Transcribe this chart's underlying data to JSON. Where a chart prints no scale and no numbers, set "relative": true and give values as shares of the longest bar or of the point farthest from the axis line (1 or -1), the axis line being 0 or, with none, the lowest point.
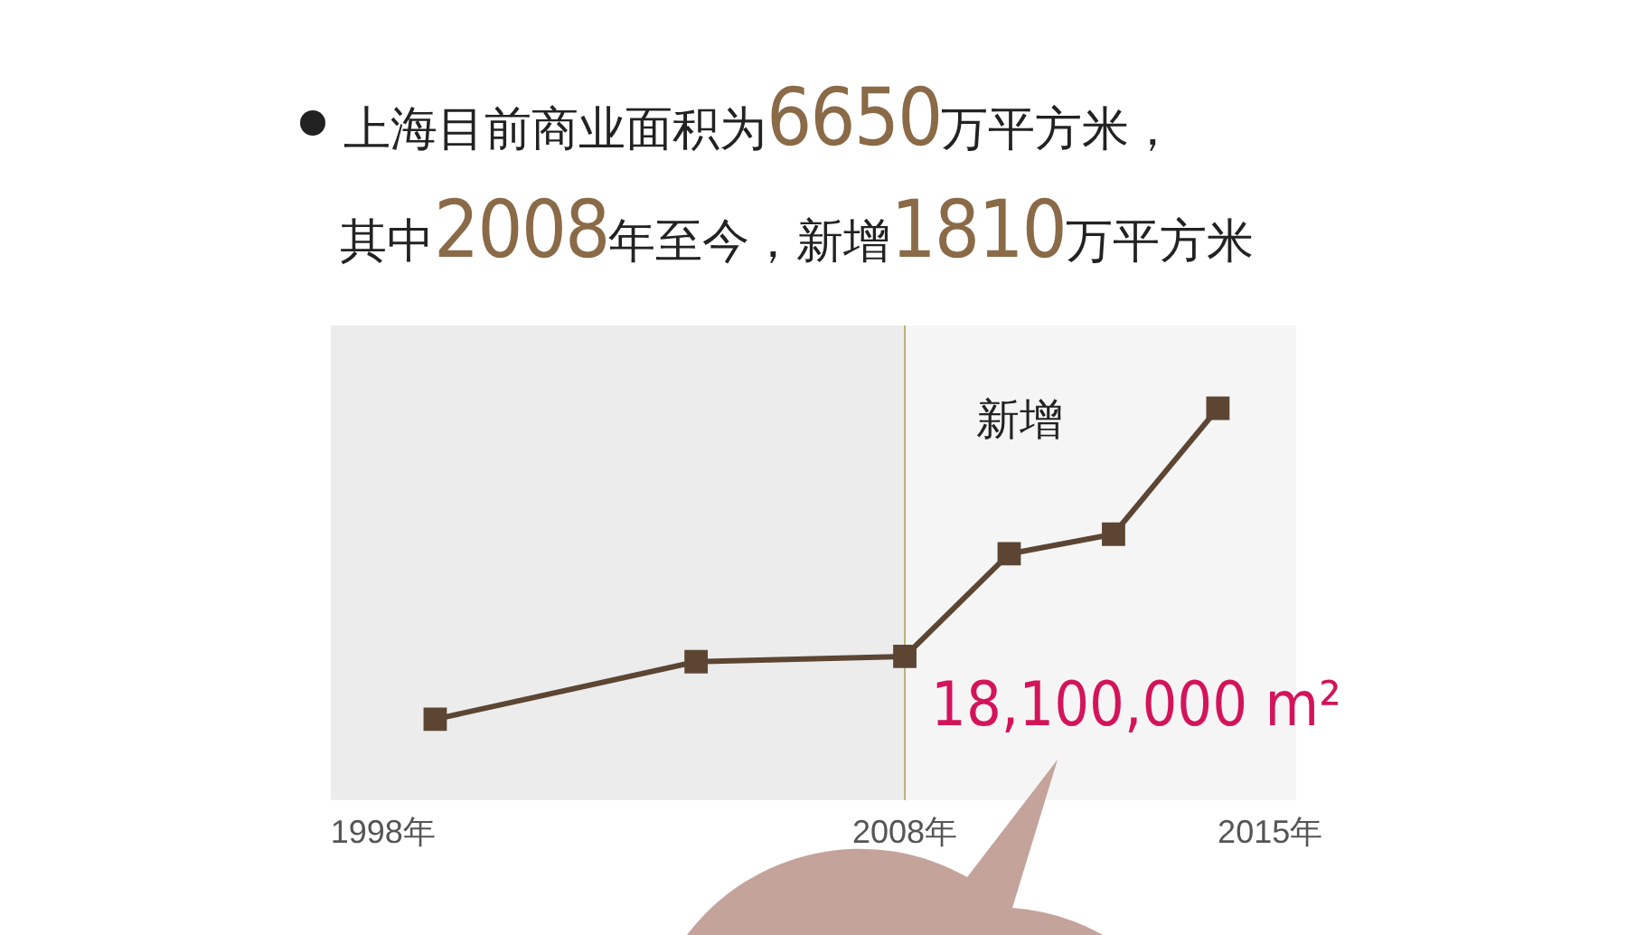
{
  "chart_data": {
    "type": "line",
    "title": "上海目前商业面积为6650万平方米，",
    "subtitle": "其中2008年至今，新增1810万平方米",
    "x": [
      1999,
      2004,
      2008,
      2010,
      2012,
      2014
    ],
    "series": [
      {
        "color": "#5c4633",
        "values": [
          0,
          0.185,
          0.202,
          0.532,
          0.595,
          1
        ]
      }
    ],
    "relative": true,
    "xlim": [
      1997,
      2015.5
    ],
    "xticks": [
      {
        "value": 1998,
        "label": "1998年"
      },
      {
        "value": 2008,
        "label": "2008年"
      },
      {
        "value": 2015,
        "label": "2015年"
      }
    ],
    "bands": [
      {
        "axis": "x",
        "from": 1997,
        "to": 2008,
        "color": "#ececec"
      },
      {
        "axis": "x",
        "from": 2008,
        "to": 2015.5,
        "color": "#f5f5f5"
      }
    ],
    "ref_lines": [
      {
        "axis": "x",
        "value": 2008,
        "color": "#b8b27a"
      }
    ],
    "annotations": [
      "新增",
      "18,100,000 m²"
    ],
    "marker": "square",
    "grid": false,
    "legend": false
  }
}
